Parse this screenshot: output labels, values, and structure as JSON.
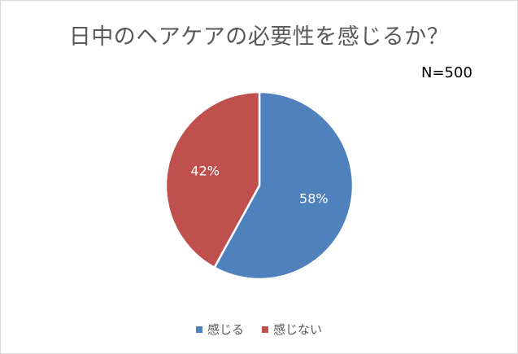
{
  "chart_data": {
    "type": "pie",
    "title": "日中のヘアケアの必要性を感じるか？",
    "annotation": "N=500",
    "categories": [
      "感じる",
      "感じない"
    ],
    "values": [
      58,
      42
    ],
    "data_labels": [
      "58%",
      "42%"
    ],
    "colors": [
      "#4f81bd",
      "#c0504d"
    ],
    "legend_position": "bottom"
  }
}
